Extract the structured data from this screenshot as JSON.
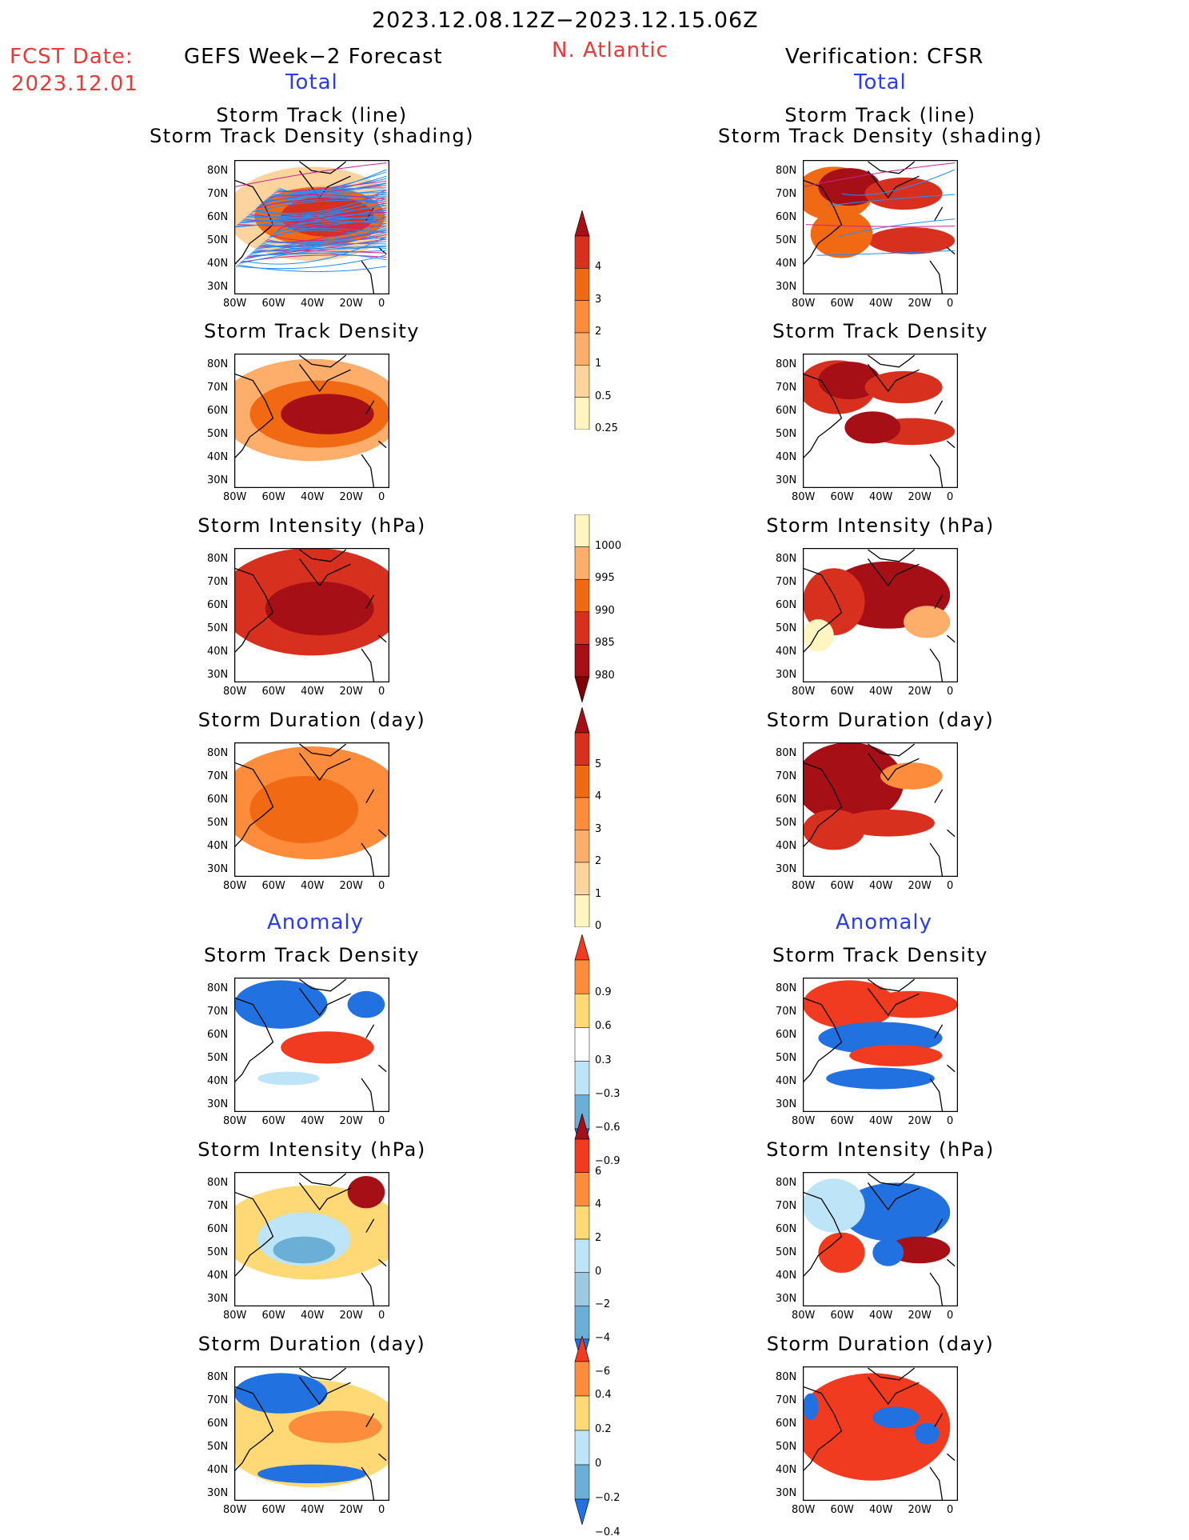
{
  "header": {
    "fcst_label": "FCST Date:",
    "fcst_date": "2023.12.01",
    "period": "2023.12.08.12Z−2023.12.15.06Z",
    "region": "N. Atlantic",
    "left_title": "GEFS Week−2 Forecast",
    "right_title": "Verification: CFSR",
    "total_label": "Total",
    "anomaly_label": "Anomaly"
  },
  "panel_titles": {
    "track_line": "Storm Track (line)",
    "track_density_shading": "Storm Track Density (shading)",
    "track_density": "Storm Track Density",
    "intensity": "Storm Intensity (hPa)",
    "duration": "Storm Duration (day)"
  },
  "axes": {
    "lat_ticks": [
      "80N",
      "70N",
      "60N",
      "50N",
      "40N",
      "30N"
    ],
    "lon_ticks": [
      "80W",
      "60W",
      "40W",
      "20W",
      "0"
    ]
  },
  "colorbars": [
    {
      "id": "density",
      "labels": [
        "4",
        "3",
        "2",
        "1",
        "0.5",
        "0.25"
      ],
      "colors": [
        "#a50f15",
        "#d7301f",
        "#f16913",
        "#fd8d3c",
        "#fdae6b",
        "#fdd49e",
        "#fff5c0"
      ]
    },
    {
      "id": "intensity",
      "labels": [
        "1000",
        "995",
        "990",
        "985",
        "980"
      ],
      "colors": [
        "#fff5c0",
        "#fdae6b",
        "#f16913",
        "#d7301f",
        "#a50f15",
        "#7f0000"
      ]
    },
    {
      "id": "duration",
      "labels": [
        "5",
        "4",
        "3",
        "2",
        "1",
        "0"
      ],
      "colors": [
        "#a50f15",
        "#d7301f",
        "#f16913",
        "#fd8d3c",
        "#fdae6b",
        "#fdd49e",
        "#fff5c0"
      ]
    },
    {
      "id": "anom_density",
      "labels": [
        "0.9",
        "0.6",
        "0.3",
        "−0.3",
        "−0.6",
        "−0.9"
      ],
      "colors": [
        "#f03b20",
        "#fd8d3c",
        "#fed976",
        "#ffffff",
        "#bde5f7",
        "#6baed6",
        "#2171e0"
      ]
    },
    {
      "id": "anom_intensity",
      "labels": [
        "6",
        "4",
        "2",
        "0",
        "−2",
        "−4",
        "−6"
      ],
      "colors": [
        "#a50f15",
        "#f03b20",
        "#fd8d3c",
        "#fed976",
        "#bde5f7",
        "#9ecae1",
        "#6baed6",
        "#2171e0"
      ]
    },
    {
      "id": "anom_duration",
      "labels": [
        "0.4",
        "0.2",
        "0",
        "−0.2",
        "−0.4"
      ],
      "colors": [
        "#f03b20",
        "#fd8d3c",
        "#fed976",
        "#bde5f7",
        "#6baed6",
        "#2171e0"
      ]
    }
  ]
}
